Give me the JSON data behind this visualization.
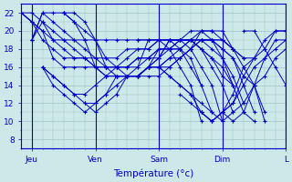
{
  "title": "",
  "xlabel": "Température (°c)",
  "ylabel": "",
  "background_color": "#cce8e8",
  "plot_bg_color": "#cce8e8",
  "grid_color": "#9fc4c4",
  "line_color": "#0000cc",
  "xlim": [
    0,
    100
  ],
  "ylim": [
    7,
    23
  ],
  "yticks": [
    8,
    10,
    12,
    14,
    16,
    18,
    20,
    22
  ],
  "xtick_positions": [
    4,
    28,
    52,
    76,
    100
  ],
  "xtick_labels": [
    "Jeu",
    "Ven",
    "Sam",
    "Dim",
    "L"
  ],
  "series": [
    {
      "start": 0,
      "values": [
        22,
        22,
        21,
        19,
        19,
        19,
        19,
        19,
        19,
        19,
        19,
        19,
        19,
        19,
        19,
        19,
        19,
        19,
        19,
        19,
        18,
        16,
        14,
        11
      ]
    },
    {
      "start": 0,
      "values": [
        22,
        21,
        20,
        17,
        16,
        16,
        16,
        16,
        16,
        16,
        16,
        17,
        17,
        18,
        18,
        18,
        19,
        19,
        19,
        18,
        17,
        15,
        14,
        10
      ]
    },
    {
      "start": 0,
      "values": [
        22,
        21,
        19,
        18,
        17,
        17,
        17,
        17,
        17,
        17,
        18,
        18,
        18,
        19,
        19,
        19,
        19,
        18,
        17,
        16,
        14
      ]
    },
    {
      "start": 0,
      "values": [
        22,
        21,
        20,
        19,
        18,
        17,
        17,
        16,
        16,
        16,
        17,
        18,
        18,
        19,
        19,
        19,
        19,
        18,
        17,
        15,
        14,
        11,
        10
      ]
    },
    {
      "start": 4,
      "values": [
        19,
        22,
        22,
        22,
        21,
        20,
        19,
        17,
        16,
        15,
        15,
        15,
        15,
        16,
        17,
        18,
        20,
        20,
        20,
        18
      ]
    },
    {
      "start": 4,
      "values": [
        19,
        22,
        21,
        20,
        19,
        18,
        17,
        16,
        16,
        16,
        16,
        17,
        17,
        18,
        19,
        20,
        20,
        19,
        17,
        14
      ]
    },
    {
      "start": 4,
      "values": [
        19,
        21,
        20,
        19,
        18,
        17,
        16,
        15,
        15,
        15,
        15,
        16,
        16,
        16,
        17,
        18,
        19,
        19,
        18,
        17,
        14,
        11
      ]
    },
    {
      "start": 8,
      "values": [
        16,
        14,
        13,
        12,
        11,
        12,
        13,
        15,
        15,
        15,
        16,
        16,
        17,
        18,
        19,
        20,
        20,
        19,
        18,
        17
      ]
    },
    {
      "start": 8,
      "values": [
        16,
        15,
        14,
        13,
        12,
        12,
        13,
        14,
        15,
        15,
        16,
        16,
        17,
        17,
        18,
        19,
        19,
        19,
        18,
        17,
        17
      ]
    },
    {
      "start": 8,
      "values": [
        16,
        15,
        14,
        13,
        13,
        14,
        15,
        16,
        16,
        17,
        17,
        18,
        18,
        19,
        19,
        19,
        18,
        17,
        15,
        12
      ]
    },
    {
      "start": 16,
      "values": [
        22,
        22,
        21,
        19,
        16,
        15,
        15,
        15,
        16,
        17,
        19,
        19,
        19,
        18,
        16,
        14,
        11
      ]
    },
    {
      "start": 16,
      "values": [
        22,
        21,
        19,
        16,
        15,
        15,
        15,
        15,
        16,
        18,
        18,
        18,
        17,
        14,
        11
      ]
    },
    {
      "start": 24,
      "values": [
        12,
        11,
        12,
        13,
        15,
        16,
        19,
        19,
        19,
        18,
        16,
        14
      ]
    },
    {
      "start": 36,
      "values": [
        15,
        15,
        15,
        16,
        17,
        19,
        19,
        18,
        16,
        14,
        10
      ]
    },
    {
      "start": 44,
      "values": [
        19,
        19,
        19,
        18,
        16,
        14,
        10
      ]
    },
    {
      "start": 52,
      "values": [
        16,
        15,
        14,
        13,
        11,
        10,
        11,
        12,
        14,
        16,
        17,
        19,
        19,
        18,
        17,
        14,
        11
      ]
    },
    {
      "start": 52,
      "values": [
        16,
        15,
        14,
        13,
        12,
        11,
        10,
        11,
        12,
        14,
        15,
        17,
        18,
        18,
        17,
        15,
        12
      ]
    },
    {
      "start": 60,
      "values": [
        13,
        12,
        11,
        10,
        11,
        12,
        15,
        17,
        18,
        20,
        20,
        20,
        18,
        16,
        14
      ]
    },
    {
      "start": 68,
      "values": [
        11,
        10,
        11,
        13,
        16,
        17,
        19,
        20,
        20,
        18,
        16,
        14
      ]
    },
    {
      "start": 76,
      "values": [
        11,
        10,
        11,
        14,
        17,
        18,
        19,
        18,
        17,
        16
      ]
    },
    {
      "start": 84,
      "values": [
        20,
        20,
        18,
        16,
        14
      ]
    }
  ]
}
